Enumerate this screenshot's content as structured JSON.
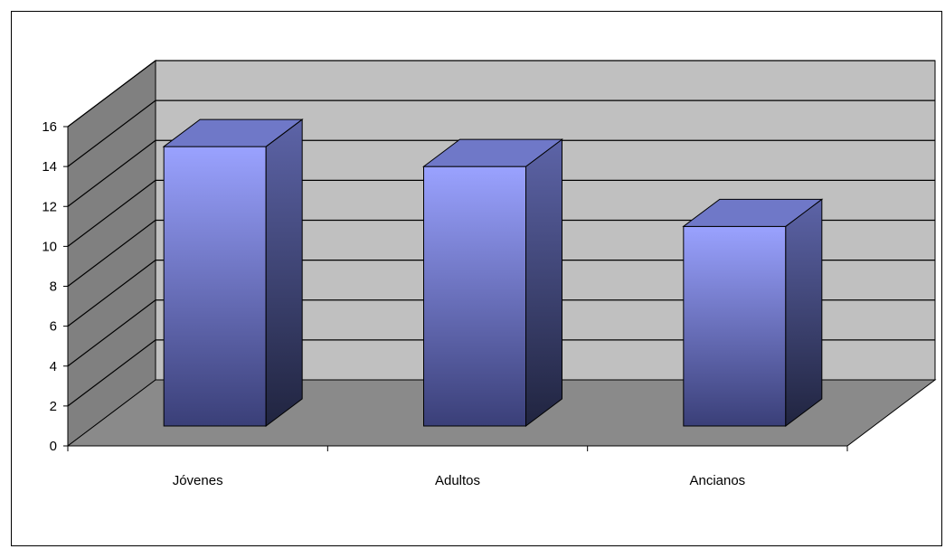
{
  "chart_data": {
    "type": "bar",
    "style": "3d-column",
    "categories": [
      "Jóvenes",
      "Adultos",
      "Ancianos"
    ],
    "values": [
      15,
      14,
      11
    ],
    "ylim": [
      0,
      16
    ],
    "yticks": [
      "0",
      "2",
      "4",
      "6",
      "8",
      "10",
      "12",
      "14",
      "16"
    ],
    "grid": true,
    "title": "",
    "xlabel": "",
    "ylabel": "",
    "colors": {
      "bar_front_top": "#9aa2ff",
      "bar_front_bottom": "#3a3f78",
      "bar_top": "#6f78c8",
      "bar_side_top": "#5d64a8",
      "bar_side_bottom": "#20243f",
      "back_wall": "#c0c0c0",
      "side_wall": "#808080",
      "floor": "#8a8a8a",
      "gridline": "#000000"
    }
  }
}
